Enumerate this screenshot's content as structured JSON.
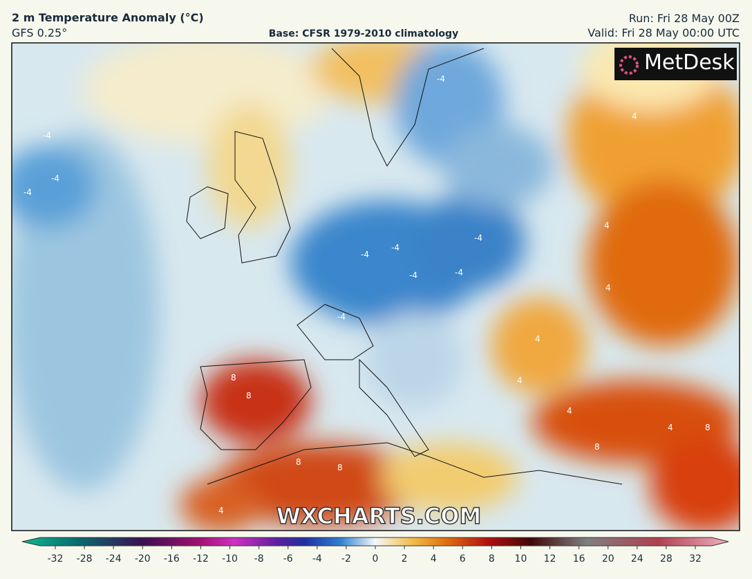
{
  "header": {
    "title": "2 m Temperature Anomaly (°C)",
    "model": "GFS 0.25°",
    "base": "Base: CFSR 1979-2010 climatology",
    "run": "Run: Fri 28 May 00Z",
    "valid": "Valid: Fri 28 May 00:00 UTC"
  },
  "map": {
    "logo": "MetDesk",
    "watermark": "WXCHARTS.COM",
    "contour_labels": [
      "-4",
      "-4",
      "-4",
      "-4",
      "-4",
      "-4",
      "-4",
      "-4",
      "-4",
      "-4",
      "4",
      "4",
      "4",
      "4",
      "4",
      "4",
      "8",
      "8",
      "8",
      "8",
      "8",
      "8",
      "4",
      "4"
    ]
  },
  "colorbar": {
    "ticks": [
      -32,
      -28,
      -24,
      -20,
      -16,
      -12,
      -10,
      -8,
      -6,
      -4,
      -2,
      0,
      2,
      4,
      6,
      8,
      10,
      12,
      16,
      20,
      24,
      28,
      32
    ]
  }
}
